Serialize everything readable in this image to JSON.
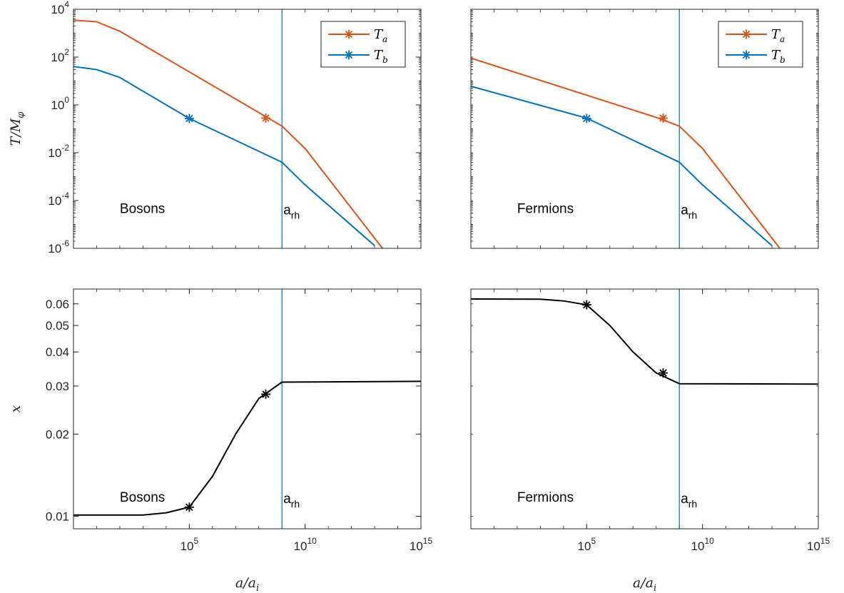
{
  "colors": {
    "Ta": "#d95319",
    "Tb": "#0072bd",
    "x": "#000000",
    "rh_line": "#0072bd",
    "axis": "#262626"
  },
  "chart_data": [
    {
      "id": "top-left",
      "type": "line",
      "yscale": "log",
      "xscale": "log",
      "xlim": [
        1,
        1000000000000000.0
      ],
      "ylim": [
        1e-06,
        10000.0
      ],
      "ylabel": "T/M_φ",
      "xlabel": "",
      "xticks": [],
      "yticks": [
        {
          "value": 1e-06,
          "base": "10",
          "exp": "-6"
        },
        {
          "value": 0.0001,
          "base": "10",
          "exp": "-4"
        },
        {
          "value": 0.01,
          "base": "10",
          "exp": "-2"
        },
        {
          "value": 1,
          "base": "10",
          "exp": "0"
        },
        {
          "value": 100,
          "base": "10",
          "exp": "2"
        },
        {
          "value": 10000,
          "base": "10",
          "exp": "4"
        }
      ],
      "annotation": "Bosons",
      "annotation_pos": [
        100,
        3e-05
      ],
      "vline": {
        "x": 1000000000.0,
        "label": "a",
        "label_sub": "rh"
      },
      "legend": {
        "placement": "top-right",
        "entries": [
          {
            "label": "T",
            "sub": "a",
            "color_key": "Ta"
          },
          {
            "label": "T",
            "sub": "b",
            "color_key": "Tb"
          }
        ]
      },
      "series": [
        {
          "name": "T_a",
          "color_key": "Ta",
          "points": [
            [
              1,
              3500
            ],
            [
              10,
              3000
            ],
            [
              100,
              1200
            ],
            [
              1000000000.0,
              0.13
            ],
            [
              10000000000.0,
              0.015
            ],
            [
              100000000000000.0,
              1.5e-07
            ]
          ],
          "markers": [
            [
              200000000.0,
              0.28
            ]
          ]
        },
        {
          "name": "T_b",
          "color_key": "Tb",
          "points": [
            [
              1,
              40
            ],
            [
              10,
              30
            ],
            [
              100,
              14
            ],
            [
              100000.0,
              0.27
            ],
            [
              1000000000.0,
              0.004
            ],
            [
              10000000000.0,
              0.00045
            ],
            [
              10000000000000.0,
              1.3e-06
            ]
          ],
          "markers": [
            [
              100000.0,
              0.27
            ]
          ]
        }
      ]
    },
    {
      "id": "top-right",
      "type": "line",
      "yscale": "log",
      "xscale": "log",
      "xlim": [
        1,
        1000000000000000.0
      ],
      "ylim": [
        1e-06,
        10000.0
      ],
      "ylabel": "",
      "xlabel": "",
      "xticks": [],
      "yticks": [],
      "annotation": "Fermions",
      "annotation_pos": [
        100,
        3e-05
      ],
      "vline": {
        "x": 1000000000.0,
        "label": "a",
        "label_sub": "rh"
      },
      "legend": {
        "placement": "top-right",
        "entries": [
          {
            "label": "T",
            "sub": "a",
            "color_key": "Ta"
          },
          {
            "label": "T",
            "sub": "b",
            "color_key": "Tb"
          }
        ]
      },
      "series": [
        {
          "name": "T_a",
          "color_key": "Ta",
          "points": [
            [
              1,
              90
            ],
            [
              100000000.0,
              0.3
            ],
            [
              1000000000.0,
              0.13
            ],
            [
              10000000000.0,
              0.015
            ],
            [
              100000000000000.0,
              1.5e-07
            ]
          ],
          "markers": [
            [
              200000000.0,
              0.28
            ]
          ]
        },
        {
          "name": "T_b",
          "color_key": "Tb",
          "points": [
            [
              1,
              6
            ],
            [
              100000.0,
              0.28
            ],
            [
              1000000000.0,
              0.004
            ],
            [
              10000000000.0,
              0.00045
            ],
            [
              10000000000000.0,
              1.3e-06
            ]
          ],
          "markers": [
            [
              100000.0,
              0.27
            ]
          ]
        }
      ]
    },
    {
      "id": "bottom-left",
      "type": "line",
      "yscale": "log",
      "xscale": "log",
      "xlim": [
        1,
        1000000000000000.0
      ],
      "ylim": [
        0.009,
        0.068
      ],
      "ylabel": "x",
      "xlabel": "a/a_i",
      "xticks": [
        {
          "value": 100000.0,
          "base": "10",
          "exp": "5"
        },
        {
          "value": 10000000000.0,
          "base": "10",
          "exp": "10"
        },
        {
          "value": 1000000000000000.0,
          "base": "10",
          "exp": "15"
        }
      ],
      "yticks": [
        {
          "value": 0.01,
          "label": "0.01"
        },
        {
          "value": 0.02,
          "label": "0.02"
        },
        {
          "value": 0.03,
          "label": "0.03"
        },
        {
          "value": 0.04,
          "label": "0.04"
        },
        {
          "value": 0.05,
          "label": "0.05"
        },
        {
          "value": 0.06,
          "label": "0.06"
        }
      ],
      "annotation": "Bosons",
      "annotation_pos": [
        100,
        0.0113
      ],
      "vline": {
        "x": 1000000000.0,
        "label": "a",
        "label_sub": "rh"
      },
      "series": [
        {
          "name": "",
          "color_key": "x",
          "points": [
            [
              1,
              0.0101
            ],
            [
              1000.0,
              0.0101
            ],
            [
              10000.0,
              0.0103
            ],
            [
              100000.0,
              0.0108
            ],
            [
              1000000.0,
              0.014
            ],
            [
              10000000.0,
              0.02
            ],
            [
              100000000.0,
              0.027
            ],
            [
              1000000000.0,
              0.031
            ],
            [
              1000000000000000.0,
              0.0312
            ]
          ],
          "markers": [
            [
              100000.0,
              0.0108
            ],
            [
              200000000.0,
              0.028
            ]
          ]
        }
      ]
    },
    {
      "id": "bottom-right",
      "type": "line",
      "yscale": "log",
      "xscale": "log",
      "xlim": [
        1,
        1000000000000000.0
      ],
      "ylim": [
        0.009,
        0.068
      ],
      "ylabel": "",
      "xlabel": "a/a_i",
      "xticks": [
        {
          "value": 100000.0,
          "base": "10",
          "exp": "5"
        },
        {
          "value": 10000000000.0,
          "base": "10",
          "exp": "10"
        },
        {
          "value": 1000000000000000.0,
          "base": "10",
          "exp": "15"
        }
      ],
      "yticks": [],
      "annotation": "Fermions",
      "annotation_pos": [
        100,
        0.0113
      ],
      "vline": {
        "x": 1000000000.0,
        "label": "a",
        "label_sub": "rh"
      },
      "series": [
        {
          "name": "",
          "color_key": "x",
          "points": [
            [
              1,
              0.0625
            ],
            [
              1000.0,
              0.0624
            ],
            [
              10000.0,
              0.0615
            ],
            [
              100000.0,
              0.0595
            ],
            [
              1000000.0,
              0.05
            ],
            [
              10000000.0,
              0.04
            ],
            [
              100000000.0,
              0.0335
            ],
            [
              1000000000.0,
              0.0306
            ],
            [
              1000000000000000.0,
              0.0305
            ]
          ],
          "markers": [
            [
              100000.0,
              0.0595
            ],
            [
              200000000.0,
              0.0335
            ]
          ]
        }
      ]
    }
  ]
}
